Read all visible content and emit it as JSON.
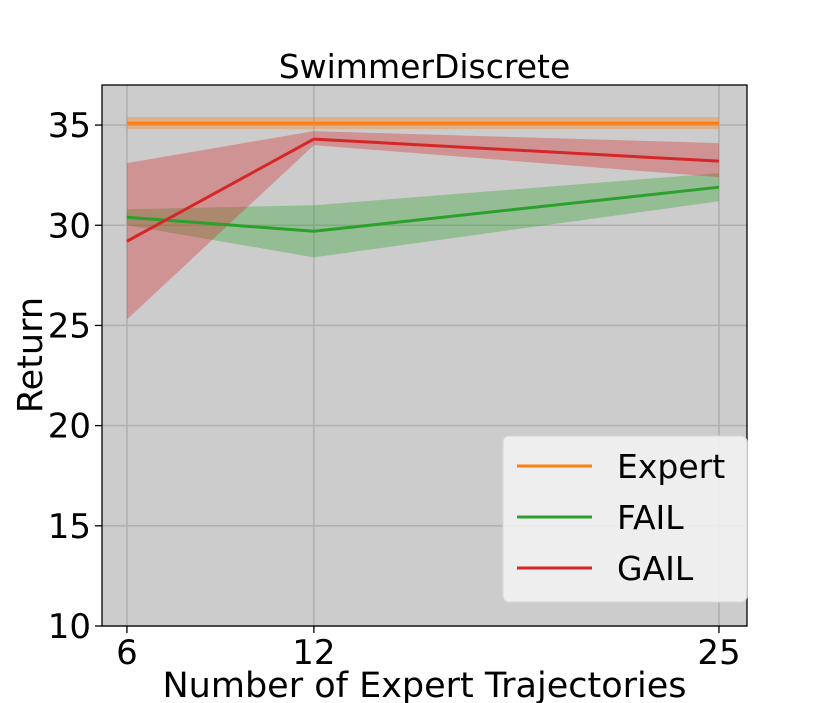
{
  "chart_data": {
    "type": "line",
    "title": "SwimmerDiscrete",
    "xlabel": "Number of Expert Trajectories",
    "ylabel": "Return",
    "x": [
      6,
      12,
      25
    ],
    "xticks": [
      6,
      12,
      25
    ],
    "xlim": [
      5.2,
      25.9
    ],
    "ylim": [
      10,
      37
    ],
    "yticks": [
      10,
      15,
      20,
      25,
      30,
      35
    ],
    "grid": true,
    "background": "#cccccc",
    "legend": {
      "placement": "lower-right",
      "entries": [
        "Expert",
        "FAIL",
        "GAIL"
      ]
    },
    "series": [
      {
        "name": "Expert",
        "color": "#ff7f0e",
        "mean": [
          35.1,
          35.1,
          35.1
        ],
        "lower": [
          34.8,
          34.8,
          34.8
        ],
        "upper": [
          35.4,
          35.4,
          35.4
        ]
      },
      {
        "name": "FAIL",
        "color": "#2ca02c",
        "mean": [
          30.4,
          29.7,
          31.9
        ],
        "lower": [
          30.0,
          28.4,
          31.2
        ],
        "upper": [
          30.8,
          31.0,
          32.6
        ]
      },
      {
        "name": "GAIL",
        "color": "#d62728",
        "mean": [
          29.2,
          34.3,
          33.2
        ],
        "lower": [
          25.3,
          34.0,
          32.4
        ],
        "upper": [
          33.1,
          34.7,
          34.1
        ]
      }
    ]
  }
}
